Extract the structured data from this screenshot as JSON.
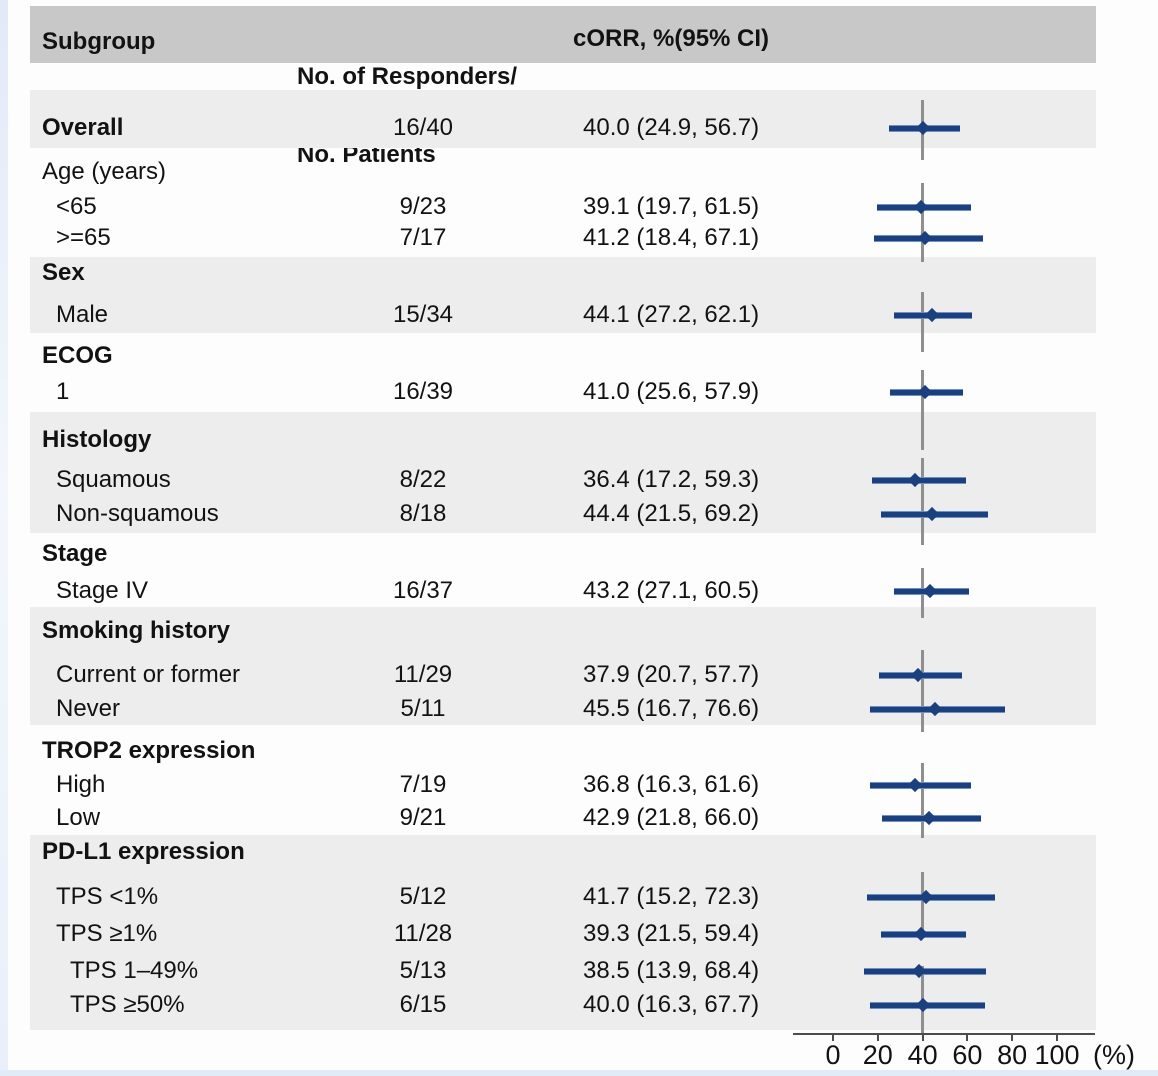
{
  "header": {
    "col_subgroup": "Subgroup",
    "col_responders_line1": "No. of Responders/",
    "col_responders_line2": "No. Patients",
    "col_corr": "cORR, %(95% CI)"
  },
  "axis": {
    "tick_labels": [
      "0",
      "20",
      "40",
      "60",
      "80",
      "100"
    ],
    "tick_values": [
      0,
      20,
      40,
      60,
      80,
      100
    ],
    "unit": "(%)",
    "reference_value": 40
  },
  "colors": {
    "ci_line": "#1a4080",
    "ci_halo": "#7090bf",
    "reference_line": "#8f8f8f",
    "header_band": "#c8c8c9",
    "shaded_band": "#ededee",
    "axis": "#4c4c4c"
  },
  "chart_data": {
    "type": "forest",
    "title": "",
    "xlabel": "(%)",
    "x_ticks": [
      0,
      20,
      40,
      60,
      80,
      100
    ],
    "reference_line": 40,
    "columns": [
      "Subgroup",
      "No. of Responders/ No. Patients",
      "cORR, %(95% CI)"
    ],
    "sections": [
      {
        "header": null,
        "shaded": true,
        "rows": [
          {
            "label": "Overall",
            "bold": true,
            "indent": 0,
            "responders": "16/40",
            "corr": "40.0 (24.9, 56.7)",
            "est": 40.0,
            "lo": 24.9,
            "hi": 56.7
          }
        ]
      },
      {
        "header": {
          "label": "Age (years)",
          "bold": false
        },
        "shaded": false,
        "rows": [
          {
            "label": "<65",
            "indent": 1,
            "responders": "9/23",
            "corr": "39.1 (19.7, 61.5)",
            "est": 39.1,
            "lo": 19.7,
            "hi": 61.5
          },
          {
            "label": ">=65",
            "indent": 1,
            "responders": "7/17",
            "corr": "41.2 (18.4, 67.1)",
            "est": 41.2,
            "lo": 18.4,
            "hi": 67.1
          }
        ]
      },
      {
        "header": {
          "label": "Sex",
          "bold": true
        },
        "shaded": true,
        "rows": [
          {
            "label": "Male",
            "indent": 1,
            "responders": "15/34",
            "corr": "44.1 (27.2, 62.1)",
            "est": 44.1,
            "lo": 27.2,
            "hi": 62.1
          }
        ]
      },
      {
        "header": {
          "label": "ECOG",
          "bold": true
        },
        "shaded": false,
        "rows": [
          {
            "label": "1",
            "indent": 1,
            "responders": "16/39",
            "corr": "41.0 (25.6, 57.9)",
            "est": 41.0,
            "lo": 25.6,
            "hi": 57.9
          }
        ]
      },
      {
        "header": {
          "label": "Histology",
          "bold": true
        },
        "shaded": true,
        "rows": [
          {
            "label": "Squamous",
            "indent": 1,
            "responders": "8/22",
            "corr": "36.4 (17.2, 59.3)",
            "est": 36.4,
            "lo": 17.2,
            "hi": 59.3
          },
          {
            "label": "Non-squamous",
            "indent": 1,
            "responders": "8/18",
            "corr": "44.4 (21.5, 69.2)",
            "est": 44.4,
            "lo": 21.5,
            "hi": 69.2
          }
        ]
      },
      {
        "header": {
          "label": "Stage",
          "bold": true
        },
        "shaded": false,
        "rows": [
          {
            "label": "Stage IV",
            "indent": 1,
            "responders": "16/37",
            "corr": "43.2 (27.1, 60.5)",
            "est": 43.2,
            "lo": 27.1,
            "hi": 60.5
          }
        ]
      },
      {
        "header": {
          "label": "Smoking history",
          "bold": true
        },
        "shaded": true,
        "rows": [
          {
            "label": "Current or former",
            "indent": 1,
            "responders": "11/29",
            "corr": "37.9 (20.7, 57.7)",
            "est": 37.9,
            "lo": 20.7,
            "hi": 57.7
          },
          {
            "label": "Never",
            "indent": 1,
            "responders": "5/11",
            "corr": "45.5 (16.7, 76.6)",
            "est": 45.5,
            "lo": 16.7,
            "hi": 76.6
          }
        ]
      },
      {
        "header": {
          "label": "TROP2 expression",
          "bold": true
        },
        "shaded": false,
        "rows": [
          {
            "label": "High",
            "indent": 1,
            "responders": "7/19",
            "corr": "36.8 (16.3, 61.6)",
            "est": 36.8,
            "lo": 16.3,
            "hi": 61.6
          },
          {
            "label": "Low",
            "indent": 1,
            "responders": "9/21",
            "corr": "42.9 (21.8, 66.0)",
            "est": 42.9,
            "lo": 21.8,
            "hi": 66.0
          }
        ]
      },
      {
        "header": {
          "label": "PD-L1 expression",
          "bold": true
        },
        "shaded": true,
        "rows": [
          {
            "label": "TPS <1%",
            "indent": 1,
            "responders": "5/12",
            "corr": "41.7 (15.2, 72.3)",
            "est": 41.7,
            "lo": 15.2,
            "hi": 72.3
          },
          {
            "label": "TPS ≥1%",
            "indent": 1,
            "responders": "11/28",
            "corr": "39.3 (21.5, 59.4)",
            "est": 39.3,
            "lo": 21.5,
            "hi": 59.4
          },
          {
            "label": "TPS 1–49%",
            "indent": 2,
            "responders": "5/13",
            "corr": "38.5 (13.9, 68.4)",
            "est": 38.5,
            "lo": 13.9,
            "hi": 68.4
          },
          {
            "label": "TPS ≥50%",
            "indent": 2,
            "responders": "6/15",
            "corr": "40.0 (16.3, 67.7)",
            "est": 40.0,
            "lo": 16.3,
            "hi": 67.7
          }
        ]
      }
    ]
  }
}
